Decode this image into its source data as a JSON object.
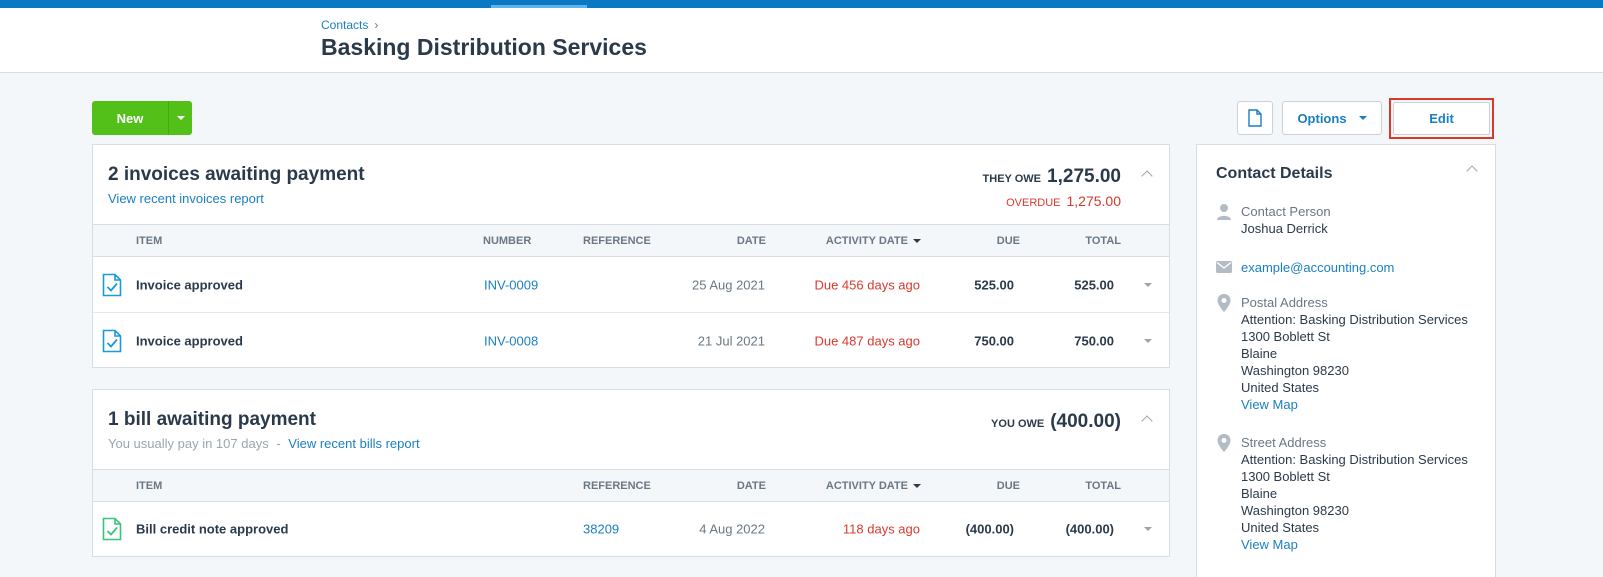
{
  "header": {
    "breadcrumb": "Contacts",
    "breadcrumb_sep": "›",
    "title": "Basking Distribution Services"
  },
  "toolbar": {
    "new_label": "New",
    "options_label": "Options",
    "edit_label": "Edit"
  },
  "invoices": {
    "title": "2 invoices awaiting payment",
    "report_link": "View recent invoices report",
    "owe_label": "THEY OWE",
    "owe_amount": "1,275.00",
    "overdue_label": "OVERDUE",
    "overdue_amount": "1,275.00",
    "columns": {
      "item": "ITEM",
      "number": "NUMBER",
      "reference": "REFERENCE",
      "date": "DATE",
      "activity_date": "ACTIVITY DATE",
      "due": "DUE",
      "total": "TOTAL"
    },
    "rows": [
      {
        "item": "Invoice approved",
        "number": "INV-0009",
        "reference": "",
        "date": "25 Aug 2021",
        "activity": "Due 456 days ago",
        "due": "525.00",
        "total": "525.00"
      },
      {
        "item": "Invoice approved",
        "number": "INV-0008",
        "reference": "",
        "date": "21 Jul 2021",
        "activity": "Due 487 days ago",
        "due": "750.00",
        "total": "750.00"
      }
    ]
  },
  "bills": {
    "title": "1 bill awaiting payment",
    "usually_pay": "You usually pay in 107 days",
    "dash": "-",
    "report_link": "View recent bills report",
    "owe_label": "YOU OWE",
    "owe_amount": "(400.00)",
    "columns": {
      "item": "ITEM",
      "reference": "REFERENCE",
      "date": "DATE",
      "activity_date": "ACTIVITY DATE",
      "due": "DUE",
      "total": "TOTAL"
    },
    "rows": [
      {
        "item": "Bill credit note approved",
        "reference": "38209",
        "date": "4 Aug 2022",
        "activity": "118 days ago",
        "due": "(400.00)",
        "total": "(400.00)"
      }
    ]
  },
  "contact": {
    "title": "Contact Details",
    "person_label": "Contact Person",
    "person_name": "Joshua  Derrick",
    "email": "example@accounting.com",
    "postal_label": "Postal Address",
    "postal_lines": [
      "Attention: Basking Distribution Services",
      "1300 Boblett St",
      "Blaine",
      "Washington 98230",
      "United States"
    ],
    "postal_map": "View Map",
    "street_label": "Street Address",
    "street_lines": [
      "Attention: Basking Distribution Services",
      "1300 Boblett St",
      "Blaine",
      "Washington 98230",
      "United States"
    ],
    "street_map": "View Map"
  },
  "colors": {
    "brand_blue": "#0a78c2",
    "new_green": "#53c01a",
    "link_blue": "#1a7fc1",
    "overdue_red": "#d63a2f",
    "highlight_red": "#d83a2a"
  },
  "icons": [
    "chevron-right-icon",
    "caret-down-icon",
    "document-icon",
    "chevron-up-icon",
    "invoice-check-icon",
    "bill-check-icon",
    "person-icon",
    "envelope-icon",
    "map-pin-icon"
  ]
}
